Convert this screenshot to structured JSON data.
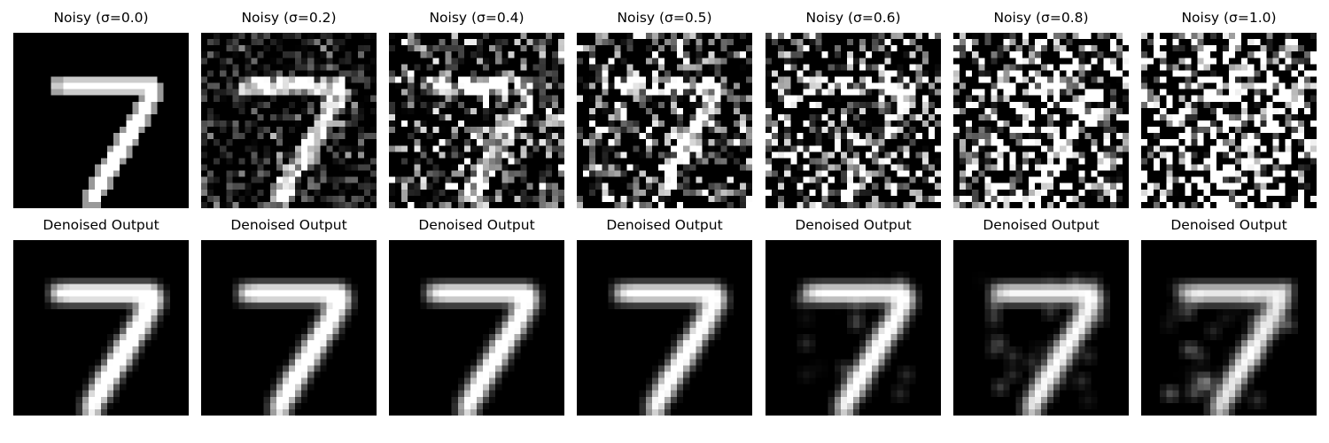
{
  "noisy_titles": [
    "Noisy (σ=0.0)",
    "Noisy (σ=0.2)",
    "Noisy (σ=0.4)",
    "Noisy (σ=0.5)",
    "Noisy (σ=0.6)",
    "Noisy (σ=0.8)",
    "Noisy (σ=1.0)"
  ],
  "denoised_title": "Denoised Output",
  "noise_levels": [
    0.0,
    0.2,
    0.4,
    0.5,
    0.6,
    0.8,
    1.0
  ],
  "colormap": "gray"
}
